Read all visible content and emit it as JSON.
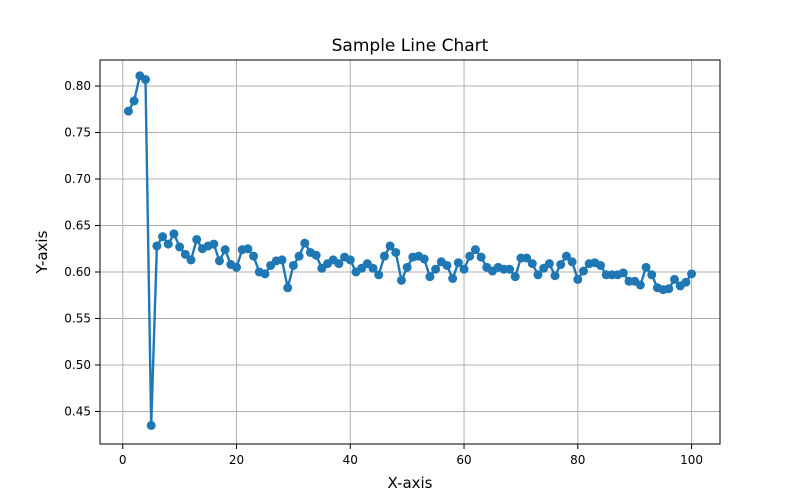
{
  "chart_data": {
    "type": "line",
    "title": "Sample Line Chart",
    "xlabel": "X-axis",
    "ylabel": "Y-axis",
    "xlim": [
      -4,
      105
    ],
    "ylim": [
      0.415,
      0.828
    ],
    "grid": true,
    "marker": "circle",
    "color": "#1f77b4",
    "x_ticks": [
      0,
      20,
      40,
      60,
      80,
      100
    ],
    "x_tick_labels": [
      "0",
      "20",
      "40",
      "60",
      "80",
      "100"
    ],
    "y_ticks": [
      0.45,
      0.5,
      0.55,
      0.6,
      0.65,
      0.7,
      0.75,
      0.8
    ],
    "y_tick_labels": [
      "0.45",
      "0.50",
      "0.55",
      "0.60",
      "0.65",
      "0.70",
      "0.75",
      "0.80"
    ],
    "x": [
      1,
      2,
      3,
      4,
      5,
      6,
      7,
      8,
      9,
      10,
      11,
      12,
      13,
      14,
      15,
      16,
      17,
      18,
      19,
      20,
      21,
      22,
      23,
      24,
      25,
      26,
      27,
      28,
      29,
      30,
      31,
      32,
      33,
      34,
      35,
      36,
      37,
      38,
      39,
      40,
      41,
      42,
      43,
      44,
      45,
      46,
      47,
      48,
      49,
      50,
      51,
      52,
      53,
      54,
      55,
      56,
      57,
      58,
      59,
      60,
      61,
      62,
      63,
      64,
      65,
      66,
      67,
      68,
      69,
      70,
      71,
      72,
      73,
      74,
      75,
      76,
      77,
      78,
      79,
      80,
      81,
      82,
      83,
      84,
      85,
      86,
      87,
      88,
      89,
      90,
      91,
      92,
      93,
      94,
      95,
      96,
      97,
      98,
      99,
      100
    ],
    "y": [
      0.773,
      0.784,
      0.811,
      0.807,
      0.435,
      0.628,
      0.638,
      0.63,
      0.641,
      0.627,
      0.619,
      0.613,
      0.635,
      0.625,
      0.628,
      0.63,
      0.612,
      0.624,
      0.608,
      0.605,
      0.624,
      0.625,
      0.617,
      0.6,
      0.598,
      0.607,
      0.612,
      0.613,
      0.583,
      0.607,
      0.617,
      0.631,
      0.621,
      0.618,
      0.604,
      0.609,
      0.613,
      0.609,
      0.616,
      0.613,
      0.6,
      0.604,
      0.609,
      0.604,
      0.597,
      0.617,
      0.628,
      0.621,
      0.591,
      0.605,
      0.616,
      0.617,
      0.614,
      0.595,
      0.603,
      0.611,
      0.607,
      0.593,
      0.61,
      0.603,
      0.617,
      0.624,
      0.616,
      0.605,
      0.601,
      0.605,
      0.603,
      0.603,
      0.595,
      0.615,
      0.615,
      0.609,
      0.597,
      0.604,
      0.609,
      0.596,
      0.608,
      0.617,
      0.611,
      0.592,
      0.601,
      0.609,
      0.61,
      0.607,
      0.597,
      0.597,
      0.597,
      0.599,
      0.59,
      0.59,
      0.586,
      0.605,
      0.597,
      0.583,
      0.581,
      0.582,
      0.592,
      0.585,
      0.589,
      0.598
    ]
  }
}
